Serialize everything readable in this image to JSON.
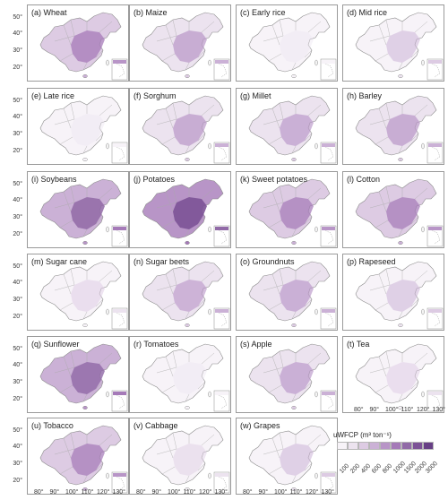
{
  "panels": [
    {
      "label": "(a) Wheat",
      "intensity": 0.65
    },
    {
      "label": "(b) Maize",
      "intensity": 0.55
    },
    {
      "label": "(c) Early rice",
      "intensity": 0.15
    },
    {
      "label": "(d) Mid rice",
      "intensity": 0.35
    },
    {
      "label": "(e) Late rice",
      "intensity": 0.15
    },
    {
      "label": "(f) Sorghum",
      "intensity": 0.55
    },
    {
      "label": "(g) Millet",
      "intensity": 0.5
    },
    {
      "label": "(h) Barley",
      "intensity": 0.55
    },
    {
      "label": "(i) Soybeans",
      "intensity": 0.8
    },
    {
      "label": "(j) Potatoes",
      "intensity": 0.85
    },
    {
      "label": "(k) Sweet potatoes",
      "intensity": 0.6
    },
    {
      "label": "(l) Cotton",
      "intensity": 0.6
    },
    {
      "label": "(m) Sugar cane",
      "intensity": 0.3
    },
    {
      "label": "(n) Sugar beets",
      "intensity": 0.45
    },
    {
      "label": "(o) Groundnuts",
      "intensity": 0.5
    },
    {
      "label": "(p) Rapeseed",
      "intensity": 0.35
    },
    {
      "label": "(q) Sunflower",
      "intensity": 0.75
    },
    {
      "label": "(r) Tomatoes",
      "intensity": 0.15
    },
    {
      "label": "(s) Apple",
      "intensity": 0.5
    },
    {
      "label": "(t) Tea",
      "intensity": 0.3
    },
    {
      "label": "(u) Tobacco",
      "intensity": 0.6
    },
    {
      "label": "(v) Cabbage",
      "intensity": 0.25
    },
    {
      "label": "(w) Grapes",
      "intensity": 0.35
    }
  ],
  "lat_labels": [
    "50°",
    "40°",
    "30°",
    "20°"
  ],
  "lon_labels": [
    "80°",
    "90°",
    "100°",
    "110°",
    "120°",
    "130°"
  ],
  "legend": {
    "title": "uWFCP (m³ ton⁻¹)",
    "ticks": [
      "100",
      "200",
      "400",
      "600",
      "800",
      "1000",
      "1500",
      "2000",
      "3000"
    ],
    "colors": [
      "#f7f3f8",
      "#ece3ef",
      "#ddcbe3",
      "#cbb1d6",
      "#b895c7",
      "#a57ab8",
      "#916aa7",
      "#7c5296",
      "#673f85"
    ]
  }
}
